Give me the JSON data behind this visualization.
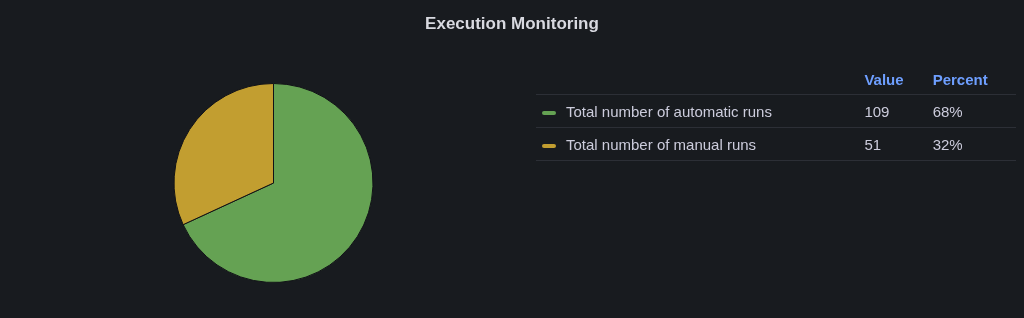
{
  "chart_data": {
    "type": "pie",
    "title": "Execution Monitoring",
    "categories": [
      "Total number of automatic runs",
      "Total number of manual runs"
    ],
    "values": [
      109,
      51
    ],
    "colors": [
      "#65a253",
      "#c29e30"
    ],
    "legend": "right",
    "data_labels": true,
    "annotations": [
      "Value",
      "Percent",
      "68%",
      "32%"
    ]
  }
}
